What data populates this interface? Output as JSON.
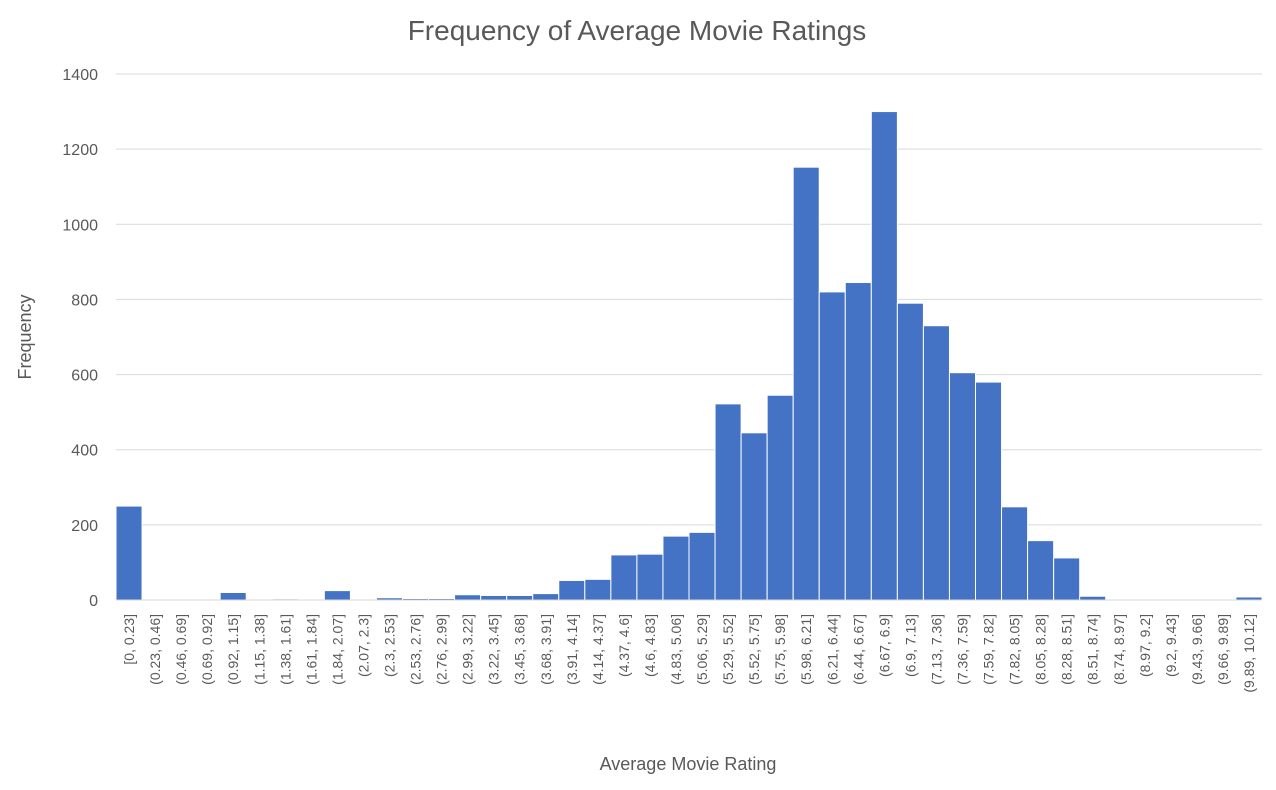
{
  "chart_data": {
    "type": "bar",
    "title": "Frequency of Average Movie Ratings",
    "xlabel": "Average Movie Rating",
    "ylabel": "Frequency",
    "ylim": [
      0,
      1400
    ],
    "yticks": [
      0,
      200,
      400,
      600,
      800,
      1000,
      1200,
      1400
    ],
    "grid": true,
    "legend": "none",
    "bar_color": "#4472C4",
    "categories": [
      "[0, 0.23]",
      "(0.23, 0.46]",
      "(0.46, 0.69]",
      "(0.69, 0.92]",
      "(0.92, 1.15]",
      "(1.15, 1.38]",
      "(1.38, 1.61]",
      "(1.61, 1.84]",
      "(1.84, 2.07]",
      "(2.07, 2.3]",
      "(2.3, 2.53]",
      "(2.53, 2.76]",
      "(2.76, 2.99]",
      "(2.99, 3.22]",
      "(3.22, 3.45]",
      "(3.45, 3.68]",
      "(3.68, 3.91]",
      "(3.91, 4.14]",
      "(4.14, 4.37]",
      "(4.37, 4.6]",
      "(4.6, 4.83]",
      "(4.83, 5.06]",
      "(5.06, 5.29]",
      "(5.29, 5.52]",
      "(5.52, 5.75]",
      "(5.75, 5.98]",
      "(5.98, 6.21]",
      "(6.21, 6.44]",
      "(6.44, 6.67]",
      "(6.67, 6.9]",
      "(6.9, 7.13]",
      "(7.13, 7.36]",
      "(7.36, 7.59]",
      "(7.59, 7.82]",
      "(7.82, 8.05]",
      "(8.05, 8.28]",
      "(8.28, 8.51]",
      "(8.51, 8.74]",
      "(8.74, 8.97]",
      "(8.97, 9.2]",
      "(9.2, 9.43]",
      "(9.43, 9.66]",
      "(9.66, 9.89]",
      "(9.89, 10.12]"
    ],
    "values": [
      250,
      0,
      0,
      0,
      20,
      0,
      3,
      0,
      25,
      0,
      6,
      4,
      4,
      14,
      12,
      12,
      17,
      52,
      55,
      120,
      122,
      170,
      180,
      522,
      445,
      545,
      1152,
      820,
      845,
      1300,
      790,
      730,
      605,
      580,
      248,
      158,
      112,
      10,
      0,
      0,
      0,
      0,
      0,
      8
    ]
  }
}
